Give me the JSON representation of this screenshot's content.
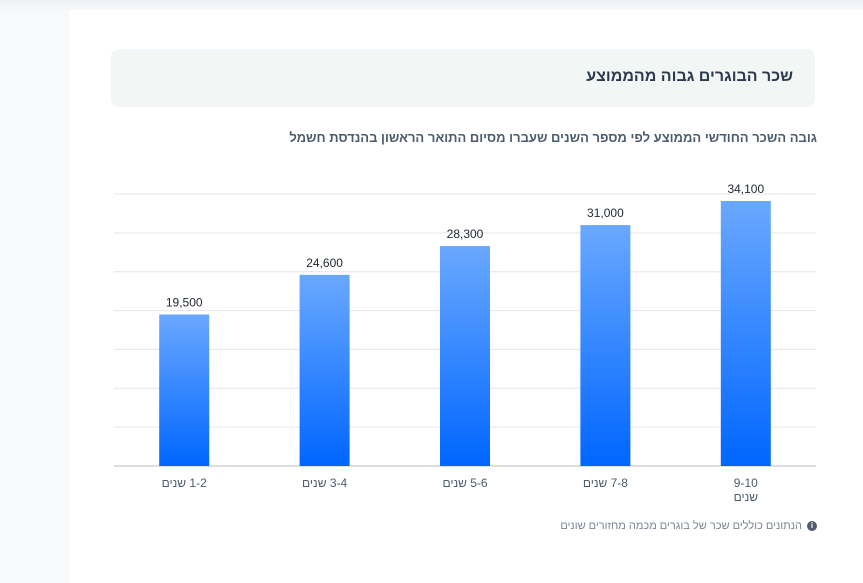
{
  "banner": {
    "title": "שכר הבוגרים גבוה מהממוצע"
  },
  "note": {
    "text": "הנתונים כוללים שכר של בוגרים מכמה מחזורים שונים",
    "icon": "info-icon"
  },
  "colors": {
    "bar_top": "#6aa8ff",
    "bar_bottom": "#0066ff",
    "gridline": "#e3e6ea"
  },
  "chart_data": {
    "type": "bar",
    "title": "גובה השכר החודשי הממוצע לפי מספר השנים שעברו מסיום התואר הראשון בהנדסת חשמל",
    "categories": [
      [
        "1-2 שנים"
      ],
      [
        "3-4 שנים"
      ],
      [
        "5-6 שנים"
      ],
      [
        "7-8 שנים"
      ],
      [
        "9-10",
        "שנים"
      ]
    ],
    "values": [
      19500,
      24600,
      28300,
      31000,
      34100
    ],
    "value_labels": [
      "19,500",
      "24,600",
      "28,300",
      "31,000",
      "34,100"
    ],
    "ylim": [
      0,
      35000
    ],
    "grid": true,
    "legend": "none"
  }
}
